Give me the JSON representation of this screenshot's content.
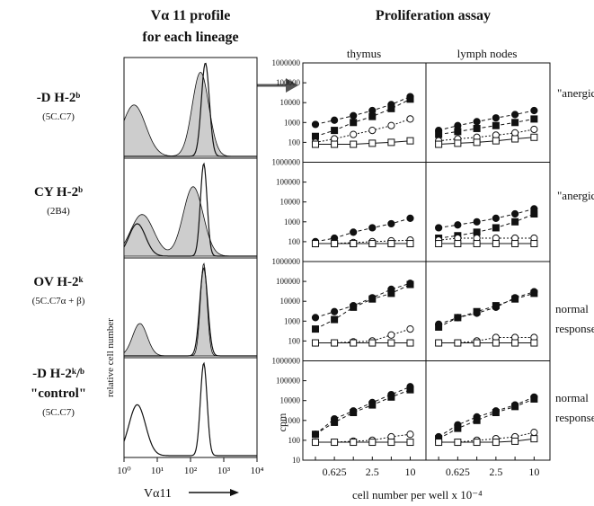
{
  "left": {
    "title_line1": "Vα 11 profile",
    "title_line2": "for each lineage",
    "ylabel": "relative cell number",
    "xlabel": "Vα11",
    "xticks": [
      "10⁰",
      "10¹",
      "10²",
      "10³",
      "10⁴"
    ],
    "lineages": [
      {
        "name": "-D H-2ᵇ",
        "clone": "(5C.C7)"
      },
      {
        "name": "CY H-2ᵇ",
        "clone": "(2B4)"
      },
      {
        "name": "OV H-2ᵏ",
        "clone": "(5C.C7α + β)"
      },
      {
        "name": "-D H-2ᵏ/ᵇ",
        "extra": "\"control\"",
        "clone": "(5C.C7)"
      }
    ]
  },
  "right": {
    "title": "Proliferation assay",
    "col_labels": [
      "thymus",
      "lymph nodes"
    ],
    "ylabel": "cpm",
    "xlabel": "cell number per well x 10⁻⁴",
    "row_notes": [
      [
        "\"anergic\""
      ],
      [
        "\"anergic\""
      ],
      [
        "normal",
        "response"
      ],
      [
        "normal",
        "response"
      ]
    ],
    "colors": {
      "line": "#111111",
      "shade": "#c8c8c8"
    }
  },
  "chart_data": [
    {
      "type": "area",
      "title": "Vα 11 profile for each lineage",
      "xlabel": "Vα11",
      "ylabel": "relative cell number",
      "xscale": "log",
      "xlim": [
        1,
        10000
      ],
      "xticks": [
        1,
        10,
        100,
        1000,
        10000
      ],
      "panels": [
        {
          "name": "-D H-2ᵇ (5C.C7)",
          "filled_peaks": [
            2,
            200
          ],
          "open_peaks": [
            280
          ]
        },
        {
          "name": "CY H-2ᵇ (2B4)",
          "filled_peaks": [
            3.5,
            120
          ],
          "open_peaks": [
            2.5,
            250
          ]
        },
        {
          "name": "OV H-2ᵏ (5C.C7α + β)",
          "filled_peaks": [
            3,
            250
          ],
          "open_peaks": [
            250
          ]
        },
        {
          "name": "-D H-2ᵏ/ᵇ \"control\" (5C.C7)",
          "filled_peaks": [],
          "open_peaks": [
            2.5,
            250
          ]
        }
      ]
    },
    {
      "type": "line",
      "title": "Proliferation assay",
      "xlabel": "cell number per well x 10⁻⁴",
      "ylabel": "cpm",
      "yscale": "log",
      "ylim": [
        10,
        1000000
      ],
      "yticks": [
        10,
        100,
        1000,
        10000,
        100000,
        1000000
      ],
      "x": [
        0.3125,
        0.625,
        1.25,
        2.5,
        5,
        10
      ],
      "xticks": [
        "0.625",
        "2.5",
        "10"
      ],
      "columns": [
        "thymus",
        "lymph nodes"
      ],
      "series_legend": [
        "filled circle",
        "filled square",
        "open circle",
        "open square"
      ],
      "panels": [
        {
          "row": 1,
          "column": "thymus",
          "series": [
            {
              "marker": "filled circle",
              "values": [
                800,
                1300,
                2200,
                4000,
                8000,
                20000
              ]
            },
            {
              "marker": "filled square",
              "values": [
                200,
                400,
                1000,
                2000,
                5000,
                15000
              ]
            },
            {
              "marker": "open circle",
              "values": [
                100,
                150,
                250,
                400,
                700,
                1500
              ]
            },
            {
              "marker": "open square",
              "values": [
                80,
                80,
                80,
                90,
                100,
                120
              ]
            }
          ]
        },
        {
          "row": 1,
          "column": "lymph nodes",
          "series": [
            {
              "marker": "filled circle",
              "values": [
                400,
                700,
                1100,
                1700,
                2500,
                4000
              ]
            },
            {
              "marker": "filled square",
              "values": [
                250,
                350,
                500,
                700,
                1000,
                1500
              ]
            },
            {
              "marker": "open circle",
              "values": [
                120,
                150,
                180,
                230,
                300,
                450
              ]
            },
            {
              "marker": "open square",
              "values": [
                80,
                90,
                100,
                120,
                150,
                180
              ]
            }
          ]
        },
        {
          "row": 2,
          "column": "thymus",
          "series": [
            {
              "marker": "filled circle",
              "values": [
                100,
                150,
                300,
                500,
                800,
                1500
              ]
            },
            {
              "marker": "filled square",
              "values": [
                80,
                80,
                80,
                80,
                80,
                80
              ]
            },
            {
              "marker": "open circle",
              "values": [
                80,
                80,
                90,
                100,
                110,
                120
              ]
            },
            {
              "marker": "open square",
              "values": [
                80,
                80,
                80,
                80,
                80,
                80
              ]
            }
          ]
        },
        {
          "row": 2,
          "column": "lymph nodes",
          "series": [
            {
              "marker": "filled circle",
              "values": [
                500,
                700,
                1000,
                1500,
                2500,
                4500
              ]
            },
            {
              "marker": "filled square",
              "values": [
                150,
                200,
                300,
                500,
                1000,
                2500
              ]
            },
            {
              "marker": "open circle",
              "values": [
                120,
                150,
                150,
                150,
                150,
                150
              ]
            },
            {
              "marker": "open square",
              "values": [
                80,
                80,
                80,
                80,
                80,
                80
              ]
            }
          ]
        },
        {
          "row": 3,
          "column": "thymus",
          "series": [
            {
              "marker": "filled circle",
              "values": [
                1500,
                3000,
                6000,
                15000,
                40000,
                80000
              ]
            },
            {
              "marker": "filled square",
              "values": [
                400,
                1200,
                5000,
                13000,
                25000,
                70000
              ]
            },
            {
              "marker": "open circle",
              "values": [
                80,
                80,
                90,
                100,
                200,
                400
              ]
            },
            {
              "marker": "open square",
              "values": [
                80,
                80,
                80,
                80,
                80,
                80
              ]
            }
          ]
        },
        {
          "row": 3,
          "column": "lymph nodes",
          "series": [
            {
              "marker": "filled circle",
              "values": [
                700,
                1500,
                2500,
                5000,
                15000,
                30000
              ]
            },
            {
              "marker": "filled square",
              "values": [
                500,
                1500,
                3000,
                6000,
                13000,
                25000
              ]
            },
            {
              "marker": "open circle",
              "values": [
                80,
                80,
                100,
                150,
                150,
                150
              ]
            },
            {
              "marker": "open square",
              "values": [
                80,
                80,
                80,
                80,
                80,
                80
              ]
            }
          ]
        },
        {
          "row": 4,
          "column": "thymus",
          "series": [
            {
              "marker": "filled circle",
              "values": [
                200,
                1200,
                3000,
                8000,
                20000,
                50000
              ]
            },
            {
              "marker": "filled square",
              "values": [
                200,
                800,
                2500,
                6000,
                15000,
                35000
              ]
            },
            {
              "marker": "open circle",
              "values": [
                80,
                80,
                90,
                100,
                150,
                200
              ]
            },
            {
              "marker": "open square",
              "values": [
                80,
                80,
                80,
                80,
                80,
                80
              ]
            }
          ]
        },
        {
          "row": 4,
          "column": "lymph nodes",
          "series": [
            {
              "marker": "filled circle",
              "values": [
                150,
                600,
                1500,
                3000,
                6000,
                15000
              ]
            },
            {
              "marker": "filled square",
              "values": [
                120,
                400,
                1000,
                2500,
                5000,
                12000
              ]
            },
            {
              "marker": "open circle",
              "values": [
                80,
                80,
                100,
                120,
                150,
                250
              ]
            },
            {
              "marker": "open square",
              "values": [
                80,
                80,
                80,
                80,
                90,
                120
              ]
            }
          ]
        }
      ]
    }
  ]
}
